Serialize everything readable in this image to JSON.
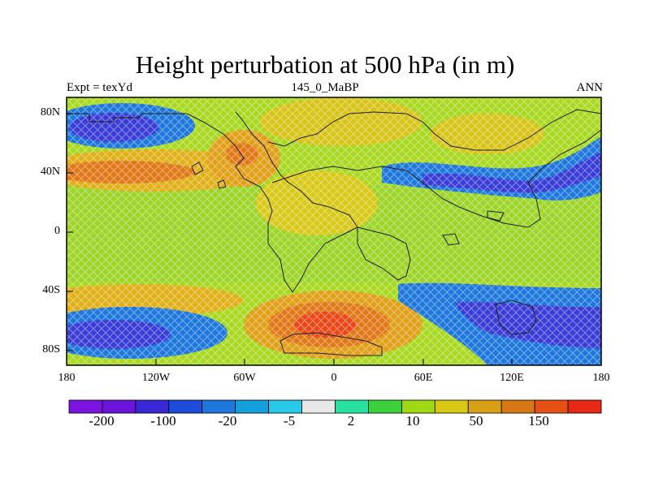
{
  "title": "Height perturbation at 500 hPa (in m)",
  "subtitle_left": "Expt = texYd",
  "subtitle_center": "145_0_MaBP",
  "subtitle_right": "ANN",
  "lat_labels": [
    "80N",
    "40N",
    "0",
    "40S",
    "80S"
  ],
  "lon_labels": [
    "180",
    "120W",
    "60W",
    "0",
    "60E",
    "120E",
    "180"
  ],
  "colorbar": {
    "colors": [
      "#7c14e0",
      "#6a14dc",
      "#3a28d6",
      "#1e4cd8",
      "#1e78dc",
      "#14a0dc",
      "#28c8e8",
      "#e8e8e8",
      "#28e0a0",
      "#3cd03c",
      "#a0d814",
      "#d8c814",
      "#d8a014",
      "#d87814",
      "#e65014",
      "#e62814"
    ],
    "labels": [
      "-200",
      "-100",
      "-20",
      "-5",
      "2",
      "10",
      "50",
      "150"
    ]
  }
}
